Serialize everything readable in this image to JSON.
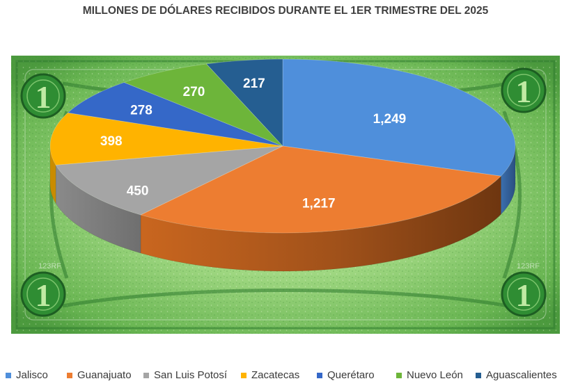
{
  "chart_data": {
    "type": "pie",
    "title": "MILLONES DE DÓLARES RECIBIDOS DURANTE EL 1ER TRIMESTRE DEL 2025",
    "categories": [
      "Jalisco",
      "Guanajuato",
      "San Luis Potosí",
      "Zacatecas",
      "Querétaro",
      "Nuevo León",
      "Aguascalientes"
    ],
    "values": [
      1249,
      1217,
      450,
      398,
      278,
      270,
      217
    ],
    "data_labels": [
      "1,249",
      "1,217",
      "450",
      "398",
      "278",
      "270",
      "217"
    ],
    "colors": [
      "#4f8fdb",
      "#ed7d31",
      "#a5a5a5",
      "#ffb300",
      "#3568c8",
      "#6db53a",
      "#255e91"
    ],
    "legend_position": "bottom",
    "style": "3d-pie",
    "background": "green one-dollar banknote picture"
  },
  "watermark_text": [
    "123RF",
    "123RF"
  ]
}
